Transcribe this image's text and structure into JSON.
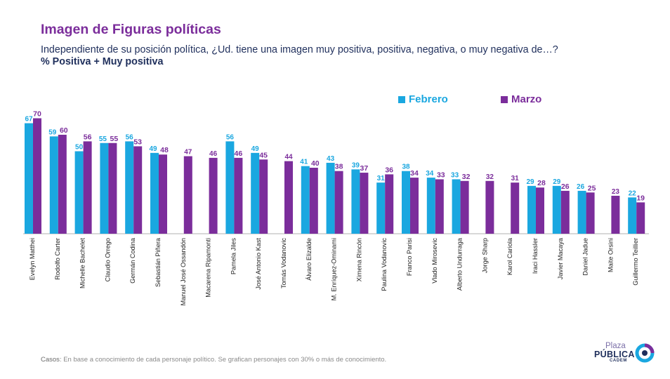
{
  "header": {
    "title": "Imagen de Figuras políticas",
    "subtitle": "Independiente de su posición política, ¿Ud. tiene una imagen muy positiva, positiva, negativa, o muy negativa de…?",
    "metric": "% Positiva + Muy positiva"
  },
  "footnote": {
    "label": "Casos",
    "text": ": En base a conocimiento de cada personaje político. Se grafican personajes con 30% o más de conocimiento."
  },
  "logo": {
    "line1": "Plaza",
    "line2": "PÚBLICA",
    "line3": "CADEM",
    "icon": "cadem-logo-icon"
  },
  "colors": {
    "febrero": "#1aa7e0",
    "marzo": "#7b2d9b",
    "axis": "#b0b0b0",
    "title": "#7b2d9b"
  },
  "chart_data": {
    "type": "bar",
    "categories": [
      "Evelyn Matthei",
      "Rodolfo Carter",
      "Michelle Bachelet",
      "Claudio Orrego",
      "Germán Codina",
      "Sebastián Piñera",
      "Manuel José Ossandón",
      "Macarena Ripamonti",
      "Pamela Jiles",
      "José Antonio Kast",
      "Tomás Vodanovic",
      "Álvaro Elizalde",
      "M. Enríquez-Ominami",
      "Ximena Rincón",
      "Paulina Vodanovic",
      "Franco Parisi",
      "Vlado Mirosevic",
      "Alberto Undurraga",
      "Jorge Sharp",
      "Karol Cariola",
      "Iraci Hassler",
      "Javier Macaya",
      "Daniel Jadue",
      "Maite Orsini",
      "Guillermo Teillier"
    ],
    "series": [
      {
        "name": "Febrero",
        "values": [
          67,
          59,
          50,
          55,
          56,
          49,
          null,
          null,
          56,
          49,
          null,
          41,
          43,
          39,
          31,
          38,
          34,
          33,
          null,
          null,
          29,
          29,
          26,
          null,
          22
        ]
      },
      {
        "name": "Marzo",
        "values": [
          70,
          60,
          56,
          55,
          53,
          48,
          47,
          46,
          46,
          45,
          44,
          40,
          38,
          37,
          36,
          34,
          33,
          32,
          32,
          31,
          28,
          26,
          25,
          23,
          19
        ]
      }
    ],
    "ylim": [
      0,
      75
    ],
    "grid": false,
    "legend_position": "top-right"
  }
}
